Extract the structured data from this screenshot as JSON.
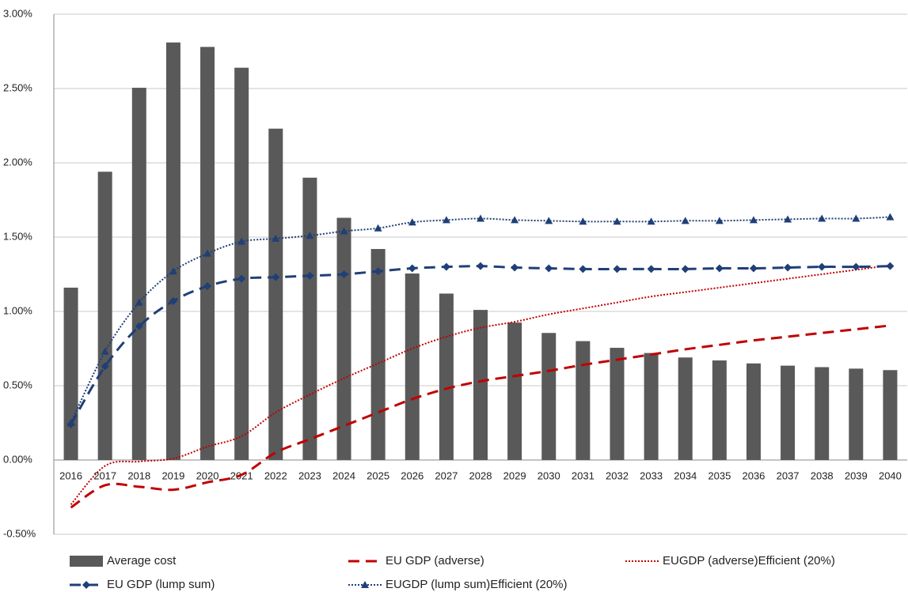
{
  "chart_data": {
    "type": "bar",
    "categories": [
      "2016",
      "2017",
      "2018",
      "2019",
      "2020",
      "2021",
      "2022",
      "2023",
      "2024",
      "2025",
      "2026",
      "2027",
      "2028",
      "2029",
      "2030",
      "2031",
      "2032",
      "2033",
      "2034",
      "2035",
      "2036",
      "2037",
      "2038",
      "2039",
      "2040"
    ],
    "series": [
      {
        "name": "Average cost",
        "type": "bar",
        "color": "#595959",
        "values": [
          1.16,
          1.94,
          2.505,
          2.81,
          2.78,
          2.64,
          2.23,
          1.9,
          1.63,
          1.42,
          1.255,
          1.12,
          1.01,
          0.925,
          0.855,
          0.8,
          0.755,
          0.72,
          0.69,
          0.67,
          0.65,
          0.635,
          0.625,
          0.615,
          0.605
        ]
      },
      {
        "name": "EU GDP (adverse)",
        "type": "line",
        "line_style": "dashed",
        "color": "#c00000",
        "values": [
          -0.32,
          -0.17,
          -0.18,
          -0.2,
          -0.15,
          -0.1,
          0.05,
          0.14,
          0.23,
          0.32,
          0.41,
          0.48,
          0.53,
          0.565,
          0.6,
          0.64,
          0.675,
          0.71,
          0.745,
          0.775,
          0.805,
          0.83,
          0.855,
          0.88,
          0.905
        ]
      },
      {
        "name": "EUGDP (adverse)Efficient (20%)",
        "type": "line",
        "line_style": "dotted",
        "color": "#c00000",
        "values": [
          -0.3,
          -0.04,
          -0.01,
          0.01,
          0.09,
          0.16,
          0.32,
          0.44,
          0.55,
          0.65,
          0.75,
          0.83,
          0.89,
          0.93,
          0.98,
          1.02,
          1.06,
          1.1,
          1.13,
          1.16,
          1.19,
          1.22,
          1.25,
          1.28,
          1.31
        ]
      },
      {
        "name": "EU GDP (lump sum)",
        "type": "line",
        "line_style": "dashed",
        "marker": "diamond",
        "color": "#1f3f77",
        "values": [
          0.24,
          0.63,
          0.9,
          1.07,
          1.17,
          1.22,
          1.23,
          1.24,
          1.25,
          1.27,
          1.29,
          1.3,
          1.305,
          1.295,
          1.29,
          1.285,
          1.285,
          1.285,
          1.285,
          1.29,
          1.29,
          1.295,
          1.3,
          1.3,
          1.305
        ]
      },
      {
        "name": "EUGDP (lump sum)Efficient (20%)",
        "type": "line",
        "line_style": "dotted",
        "marker": "triangle",
        "color": "#1f3f77",
        "values": [
          0.25,
          0.73,
          1.06,
          1.27,
          1.39,
          1.47,
          1.49,
          1.51,
          1.54,
          1.56,
          1.6,
          1.615,
          1.625,
          1.615,
          1.61,
          1.605,
          1.605,
          1.605,
          1.61,
          1.61,
          1.615,
          1.62,
          1.625,
          1.625,
          1.635
        ]
      }
    ],
    "ylim": [
      -0.5,
      3.0
    ],
    "yticks": [
      {
        "value": -0.5,
        "label": "-0.50%"
      },
      {
        "value": 0,
        "label": "0.00%"
      },
      {
        "value": 0.5,
        "label": "0.50%"
      },
      {
        "value": 1,
        "label": "1.00%"
      },
      {
        "value": 1.5,
        "label": "1.50%"
      },
      {
        "value": 2,
        "label": "2.00%"
      },
      {
        "value": 2.5,
        "label": "2.50%"
      },
      {
        "value": 3,
        "label": "3.00%"
      }
    ],
    "grid": true,
    "legend": "bottom"
  }
}
